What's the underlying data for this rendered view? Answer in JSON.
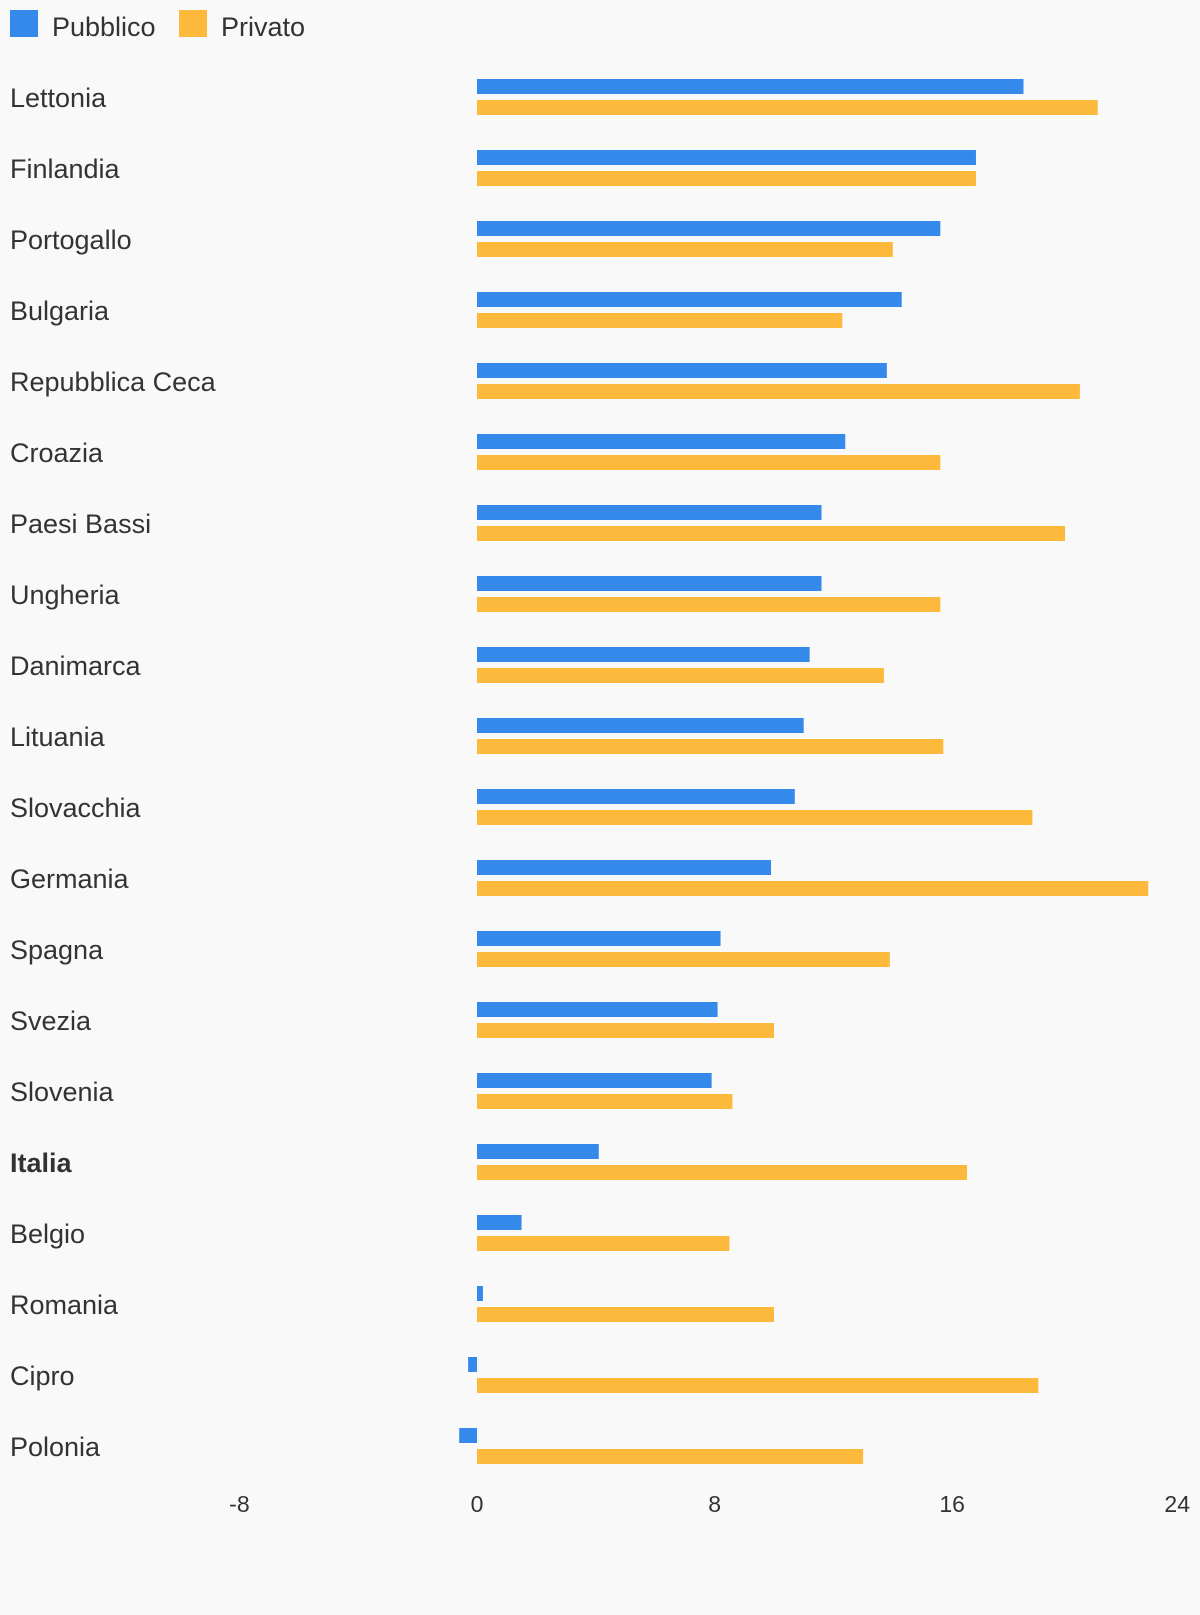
{
  "chart_data": {
    "type": "bar",
    "orientation": "horizontal",
    "title": "",
    "xlabel": "",
    "ylabel": "",
    "xlim": [
      -8,
      24
    ],
    "xticks": [
      -8,
      0,
      8,
      16,
      24
    ],
    "grid": false,
    "legend_position": "top-left",
    "highlighted_category": "Italia",
    "categories": [
      "Lettonia",
      "Finlandia",
      "Portogallo",
      "Bulgaria",
      "Repubblica Ceca",
      "Croazia",
      "Paesi Bassi",
      "Ungheria",
      "Danimarca",
      "Lituania",
      "Slovacchia",
      "Germania",
      "Spagna",
      "Svezia",
      "Slovenia",
      "Italia",
      "Belgio",
      "Romania",
      "Cipro",
      "Polonia"
    ],
    "series": [
      {
        "name": "Pubblico",
        "color": "#3589eb",
        "values": [
          18.4,
          16.8,
          15.6,
          14.3,
          13.8,
          12.4,
          11.6,
          11.6,
          11.2,
          11.0,
          10.7,
          9.9,
          8.2,
          8.1,
          7.9,
          4.1,
          1.5,
          0.2,
          -0.3,
          -0.6
        ]
      },
      {
        "name": "Privato",
        "color": "#fdb93c",
        "values": [
          20.9,
          16.8,
          14.0,
          12.3,
          20.3,
          15.6,
          19.8,
          15.6,
          13.7,
          15.7,
          18.7,
          22.6,
          13.9,
          10.0,
          8.6,
          16.5,
          8.5,
          10.0,
          18.9,
          13.0
        ]
      }
    ]
  }
}
